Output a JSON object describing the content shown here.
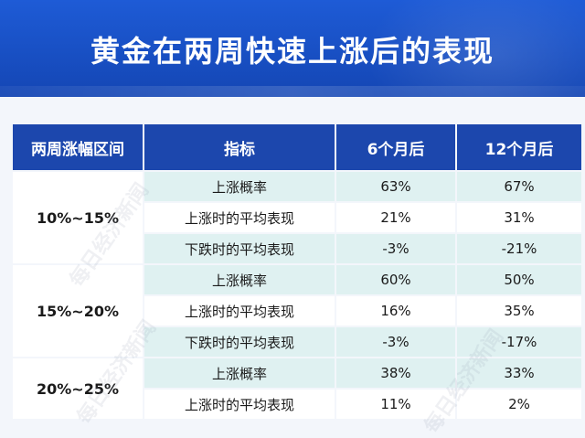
{
  "title": "黄金在两周快速上涨后的表现",
  "table": {
    "headers": [
      "两周涨幅区间",
      "指标",
      "6个月后",
      "12个月后"
    ],
    "groups": [
      {
        "range": "10%~15%",
        "rows": [
          {
            "metric": "上涨概率",
            "m6": "63%",
            "m12": "67%"
          },
          {
            "metric": "上涨时的平均表现",
            "m6": "21%",
            "m12": "31%"
          },
          {
            "metric": "下跌时的平均表现",
            "m6": "-3%",
            "m12": "-21%"
          }
        ]
      },
      {
        "range": "15%~20%",
        "rows": [
          {
            "metric": "上涨概率",
            "m6": "60%",
            "m12": "50%"
          },
          {
            "metric": "上涨时的平均表现",
            "m6": "16%",
            "m12": "35%"
          },
          {
            "metric": "下跌时的平均表现",
            "m6": "-3%",
            "m12": "-17%"
          }
        ]
      },
      {
        "range": "20%~25%",
        "rows": [
          {
            "metric": "上涨概率",
            "m6": "38%",
            "m12": "33%"
          },
          {
            "metric": "上涨时的平均表现",
            "m6": "11%",
            "m12": "2%"
          }
        ]
      }
    ]
  },
  "watermark": "每日经济新闻",
  "colors": {
    "banner": "#1a50c4",
    "header": "#1c47ad",
    "shade": "#dff1f1"
  }
}
